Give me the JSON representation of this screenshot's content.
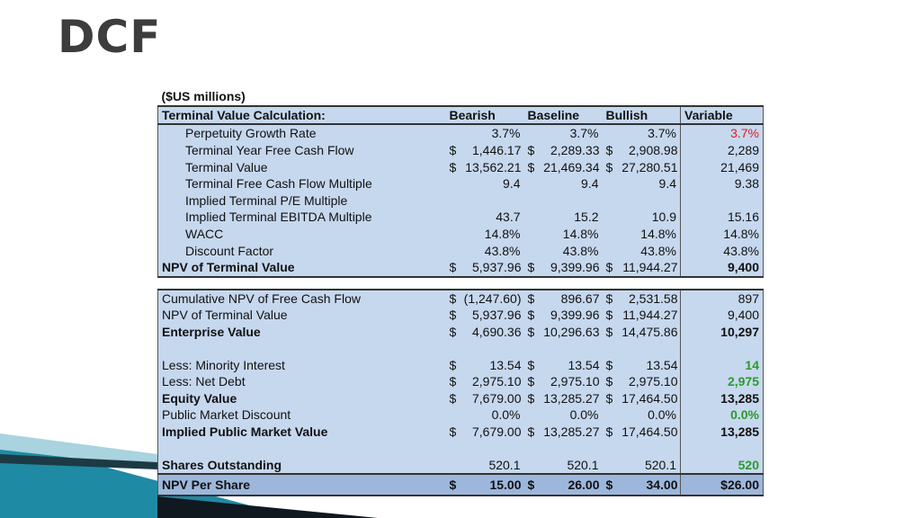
{
  "slide": {
    "title": "DCF"
  },
  "table": {
    "units": "($US millions)",
    "header": {
      "label": "Terminal Value Calculation:",
      "bearish": "Bearish",
      "baseline": "Baseline",
      "bullish": "Bullish",
      "variable": "Variable"
    },
    "terminal_rows": [
      {
        "label": "Perpetuity Growth Rate",
        "bearish": "3.7%",
        "baseline": "3.7%",
        "bullish": "3.7%",
        "variable": "3.7%"
      },
      {
        "label": "Terminal Year Free Cash Flow",
        "bearish_cur": "$",
        "bearish": "1,446.17",
        "baseline_cur": "$",
        "baseline": "2,289.33",
        "bullish_cur": "$",
        "bullish": "2,908.98",
        "variable": "2,289"
      },
      {
        "label": "Terminal Value",
        "bearish_cur": "$",
        "bearish": "13,562.21",
        "baseline_cur": "$",
        "baseline": "21,469.34",
        "bullish_cur": "$",
        "bullish": "27,280.51",
        "variable": "21,469"
      },
      {
        "label": "Terminal Free Cash Flow Multiple",
        "bearish": "9.4",
        "baseline": "9.4",
        "bullish": "9.4",
        "variable": "9.38"
      },
      {
        "label": "Implied Terminal P/E Multiple",
        "bearish": "",
        "baseline": "",
        "bullish": "",
        "variable": ""
      },
      {
        "label": "Implied Terminal EBITDA Multiple",
        "bearish": "43.7",
        "baseline": "15.2",
        "bullish": "10.9",
        "variable": "15.16"
      },
      {
        "label": "WACC",
        "bearish": "14.8%",
        "baseline": "14.8%",
        "bullish": "14.8%",
        "variable": "14.8%"
      },
      {
        "label": "Discount Factor",
        "bearish": "43.8%",
        "baseline": "43.8%",
        "bullish": "43.8%",
        "variable": "43.8%"
      }
    ],
    "npv_terminal": {
      "label": "NPV of Terminal Value",
      "bearish_cur": "$",
      "bearish": "5,937.96",
      "baseline_cur": "$",
      "baseline": "9,399.96",
      "bullish_cur": "$",
      "bullish": "11,944.27",
      "variable": "9,400"
    },
    "valuation_rows": [
      {
        "label": "Cumulative NPV of Free Cash Flow",
        "bearish_cur": "$",
        "bearish": "(1,247.60)",
        "baseline_cur": "$",
        "baseline": "896.67",
        "bullish_cur": "$",
        "bullish": "2,531.58",
        "variable": "897"
      },
      {
        "label": "NPV of Terminal Value",
        "bearish_cur": "$",
        "bearish": "5,937.96",
        "baseline_cur": "$",
        "baseline": "9,399.96",
        "bullish_cur": "$",
        "bullish": "11,944.27",
        "variable": "9,400"
      },
      {
        "label": "Enterprise Value",
        "bearish_cur": "$",
        "bearish": "4,690.36",
        "baseline_cur": "$",
        "baseline": "10,296.63",
        "bullish_cur": "$",
        "bullish": "14,475.86",
        "variable": "10,297"
      }
    ],
    "equity_rows": [
      {
        "label": "Less: Minority Interest",
        "bearish_cur": "$",
        "bearish": "13.54",
        "baseline_cur": "$",
        "baseline": "13.54",
        "bullish_cur": "$",
        "bullish": "13.54",
        "variable": "14"
      },
      {
        "label": "Less: Net Debt",
        "bearish_cur": "$",
        "bearish": "2,975.10",
        "baseline_cur": "$",
        "baseline": "2,975.10",
        "bullish_cur": "$",
        "bullish": "2,975.10",
        "variable": "2,975"
      },
      {
        "label": "Equity Value",
        "bearish_cur": "$",
        "bearish": "7,679.00",
        "baseline_cur": "$",
        "baseline": "13,285.27",
        "bullish_cur": "$",
        "bullish": "17,464.50",
        "variable": "13,285"
      },
      {
        "label": "Public Market Discount",
        "bearish": "0.0%",
        "baseline": "0.0%",
        "bullish": "0.0%",
        "variable": "0.0%"
      },
      {
        "label": "Implied Public Market Value",
        "bearish_cur": "$",
        "bearish": "7,679.00",
        "baseline_cur": "$",
        "baseline": "13,285.27",
        "bullish_cur": "$",
        "bullish": "17,464.50",
        "variable": "13,285"
      }
    ],
    "shares": {
      "label": "Shares Outstanding",
      "bearish": "520.1",
      "baseline": "520.1",
      "bullish": "520.1",
      "variable": "520"
    },
    "per_share": {
      "label": "NPV Per Share",
      "bearish_cur": "$",
      "bearish": "15.00",
      "baseline_cur": "$",
      "baseline": "26.00",
      "bullish_cur": "$",
      "bullish": "34.00",
      "variable": "$26.00"
    }
  },
  "colors": {
    "cell_fill": "#c6d8ee",
    "total_fill": "#9db7dc",
    "highlight_red": "#e02020",
    "highlight_green": "#2c9a2c",
    "title": "#3d3d3d"
  }
}
